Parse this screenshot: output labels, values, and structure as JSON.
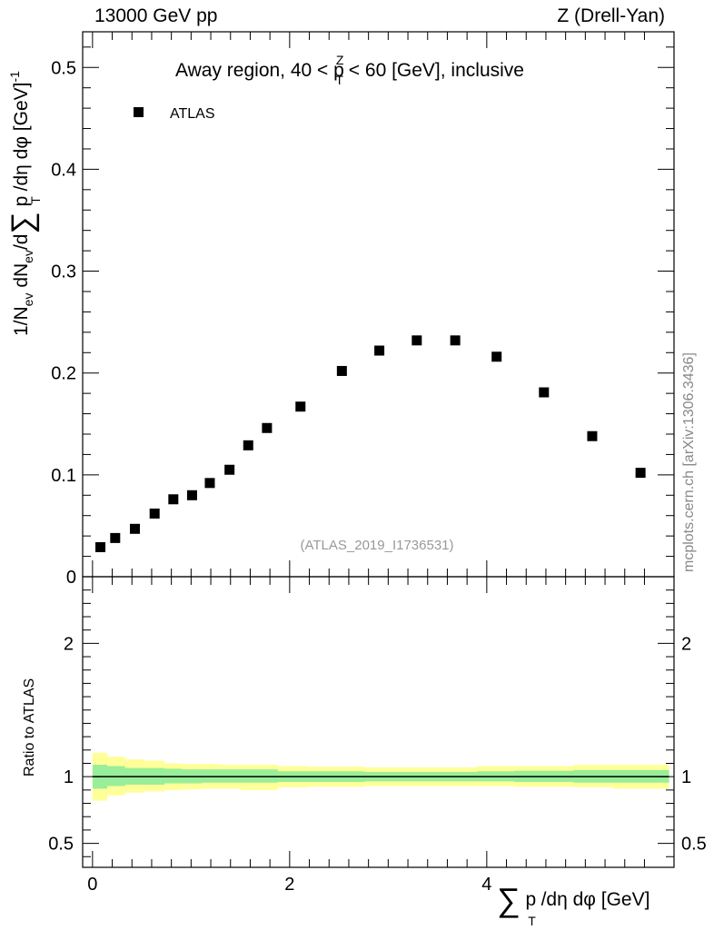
{
  "header": {
    "left": "13000 GeV pp",
    "right": "Z (Drell-Yan)",
    "side_note": "mcplots.cern.ch [arXiv:1306.3436]"
  },
  "chart_data": [
    {
      "type": "scatter",
      "title": "Away region, 40 < p_T^Z < 60 [GeV], inclusive",
      "title_parts": {
        "a": "Away region, 40 < p",
        "sup": "Z",
        "sub": "T",
        "b": " < 60 [GeV], inclusive"
      },
      "ylabel": "1/N_ev dN_ev/d∑ p_T /dη dφ [GeV]^-1",
      "ylabel_parts": {
        "p1": "1/N",
        "s1": "ev",
        "p2": " dN",
        "s2": "ev",
        "p3": "/d",
        "sum": "∑",
        "p4": " p",
        "s3": "T",
        "p5": " /dη dφ  [GeV]",
        "sup": "-1"
      },
      "xlim": [
        -0.1,
        5.9
      ],
      "ylim": [
        0,
        0.535
      ],
      "yticks": [
        0,
        0.1,
        0.2,
        0.3,
        0.4,
        0.5
      ],
      "ytick_labels": [
        "0",
        "0.1",
        "0.2",
        "0.3",
        "0.4",
        "0.5"
      ],
      "legend": {
        "label": "ATLAS",
        "position": "top-left"
      },
      "watermark": "(ATLAS_2019_I1736531)",
      "series": [
        {
          "name": "ATLAS",
          "x": [
            0.08,
            0.23,
            0.43,
            0.63,
            0.82,
            1.01,
            1.19,
            1.39,
            1.58,
            1.77,
            2.11,
            2.53,
            2.91,
            3.29,
            3.68,
            4.1,
            4.58,
            5.07,
            5.56
          ],
          "y": [
            0.029,
            0.038,
            0.047,
            0.062,
            0.076,
            0.08,
            0.092,
            0.105,
            0.129,
            0.146,
            0.167,
            0.202,
            0.222,
            0.232,
            0.232,
            0.216,
            0.181,
            0.138,
            0.102
          ]
        }
      ]
    },
    {
      "type": "area",
      "ylabel": "Ratio to ATLAS",
      "xlabel": "∑ p_T /dη dφ [GeV]",
      "xlabel_parts": {
        "sum": "∑",
        "p": " p",
        "sub": "T",
        "rest": " /dη dφ [GeV]"
      },
      "xlim": [
        -0.1,
        5.9
      ],
      "ylim": [
        0.32,
        2.5
      ],
      "xticks": [
        0,
        2,
        4
      ],
      "xtick_labels": [
        "0",
        "2",
        "4"
      ],
      "yticks": [
        0.5,
        1,
        2
      ],
      "ytick_labels": [
        "0.5",
        "1",
        "2"
      ],
      "reference_line": 1,
      "band_edges": [
        0.0,
        0.15,
        0.33,
        0.53,
        0.73,
        0.91,
        1.11,
        1.3,
        1.5,
        1.88,
        2.18,
        2.76,
        3.06,
        3.46,
        3.9,
        4.28,
        4.88,
        5.28,
        5.85
      ],
      "bands": [
        {
          "name": "total uncertainty",
          "color": "#ffff99",
          "lo": [
            0.82,
            0.86,
            0.88,
            0.89,
            0.9,
            0.905,
            0.91,
            0.91,
            0.9,
            0.92,
            0.925,
            0.93,
            0.93,
            0.93,
            0.93,
            0.925,
            0.92,
            0.91
          ],
          "hi": [
            1.18,
            1.15,
            1.13,
            1.12,
            1.1,
            1.095,
            1.095,
            1.09,
            1.09,
            1.08,
            1.075,
            1.07,
            1.07,
            1.07,
            1.08,
            1.08,
            1.09,
            1.09
          ]
        },
        {
          "name": "stat. uncertainty",
          "color": "#99ee99",
          "lo": [
            0.91,
            0.93,
            0.94,
            0.94,
            0.95,
            0.95,
            0.955,
            0.955,
            0.955,
            0.96,
            0.96,
            0.965,
            0.965,
            0.965,
            0.965,
            0.96,
            0.955,
            0.955
          ],
          "hi": [
            1.09,
            1.08,
            1.065,
            1.065,
            1.06,
            1.055,
            1.055,
            1.055,
            1.055,
            1.04,
            1.04,
            1.035,
            1.035,
            1.035,
            1.04,
            1.045,
            1.05,
            1.05
          ]
        }
      ]
    }
  ]
}
